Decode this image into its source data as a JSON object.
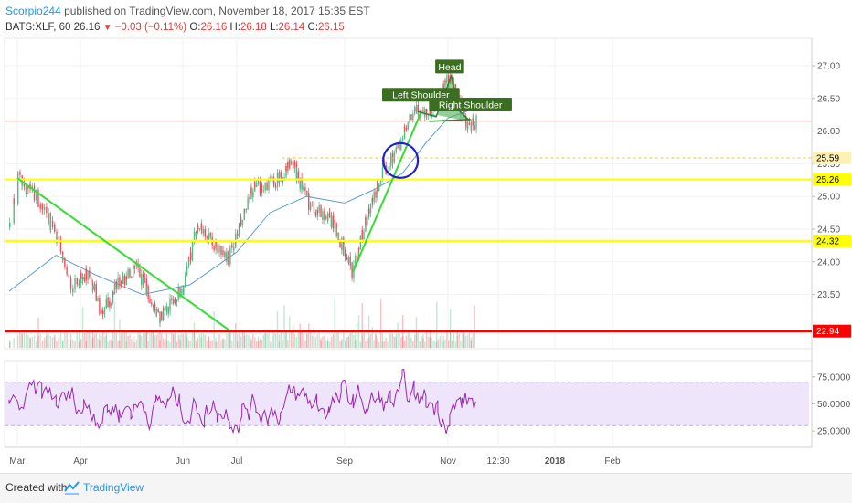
{
  "header": {
    "author": "Scorpio244",
    "published_text": "published on TradingView.com, November 18, 2017 15:35 EST",
    "symbol": "BATS:XLF, 60",
    "last": "26.16",
    "change": "−0.03 (−0.11%)",
    "o_label": "O:",
    "o_value": "26.16",
    "h_label": "H:",
    "h_value": "26.18",
    "l_label": "L:",
    "l_value": "26.14",
    "c_label": "C:",
    "c_value": "26.15"
  },
  "footer": {
    "created_with": "Created with",
    "brand": "TradingView"
  },
  "colors": {
    "up": "#53b987",
    "down": "#eb4d5c",
    "support": "#ffff00",
    "floor": "#ff0000",
    "trend": "#33dd33",
    "ma": "#5b9bd5",
    "rsi": "#9c27b0",
    "rsi_band": "#eee5fb",
    "annotation_bg": "#3b6e22",
    "circle": "#1e1ed2"
  },
  "chart_data": {
    "type": "candlestick",
    "x_ticks": [
      "Mar",
      "Apr",
      "Jun",
      "Jul",
      "Sep",
      "Nov",
      "12:30",
      "2018",
      "Feb"
    ],
    "y_ticks": [
      "27.00",
      "26.50",
      "26.00",
      "25.50",
      "25.00",
      "24.50",
      "24.00",
      "23.50"
    ],
    "ylim": [
      22.85,
      27.2
    ],
    "price_path": [
      [
        "2017-02-27",
        24.6
      ],
      [
        "2017-03-01",
        25.28
      ],
      [
        "2017-03-10",
        25.0
      ],
      [
        "2017-03-20",
        24.4
      ],
      [
        "2017-03-27",
        23.6
      ],
      [
        "2017-04-06",
        23.85
      ],
      [
        "2017-04-13",
        23.2
      ],
      [
        "2017-04-24",
        23.7
      ],
      [
        "2017-05-04",
        23.9
      ],
      [
        "2017-05-18",
        23.15
      ],
      [
        "2017-06-01",
        23.6
      ],
      [
        "2017-06-09",
        24.6
      ],
      [
        "2017-06-16",
        24.3
      ],
      [
        "2017-06-26",
        24.05
      ],
      [
        "2017-07-10",
        25.1
      ],
      [
        "2017-07-27",
        25.3
      ],
      [
        "2017-08-01",
        25.55
      ],
      [
        "2017-08-11",
        24.9
      ],
      [
        "2017-08-25",
        24.6
      ],
      [
        "2017-09-05",
        23.85
      ],
      [
        "2017-09-12",
        24.5
      ],
      [
        "2017-09-22",
        25.3
      ],
      [
        "2017-10-01",
        25.7
      ],
      [
        "2017-10-12",
        26.3
      ],
      [
        "2017-10-22",
        26.3
      ],
      [
        "2017-11-01",
        26.8
      ],
      [
        "2017-11-07",
        26.45
      ],
      [
        "2017-11-12",
        26.05
      ],
      [
        "2017-11-17",
        26.16
      ]
    ],
    "moving_average": [
      [
        "2017-02-27",
        23.55
      ],
      [
        "2017-03-20",
        24.1
      ],
      [
        "2017-04-10",
        23.8
      ],
      [
        "2017-05-08",
        23.5
      ],
      [
        "2017-06-05",
        23.65
      ],
      [
        "2017-07-01",
        24.15
      ],
      [
        "2017-07-20",
        24.75
      ],
      [
        "2017-08-10",
        25.0
      ],
      [
        "2017-09-01",
        24.9
      ],
      [
        "2017-09-18",
        25.1
      ],
      [
        "2017-10-05",
        25.35
      ],
      [
        "2017-10-20",
        25.85
      ],
      [
        "2017-11-01",
        26.2
      ],
      [
        "2017-11-17",
        26.35
      ]
    ],
    "horizontal_lines": [
      {
        "price": 25.26,
        "label": "25.26",
        "color": "#ffff00",
        "label_bg": "#ffff00",
        "label_color": "#000000"
      },
      {
        "price": 24.32,
        "label": "24.32",
        "color": "#ffff00",
        "label_bg": "#ffff00",
        "label_color": "#000000"
      },
      {
        "price": 22.94,
        "label": "22.94",
        "color": "#ff0000",
        "label_bg": "#ff0000",
        "label_color": "#ffffff"
      },
      {
        "price": 25.59,
        "label": "25.59",
        "color": "#f0c040",
        "label_bg": "#fff1b3",
        "label_color": "#000000",
        "dashed": true
      }
    ],
    "last_price_line": 26.15,
    "trend_lines": [
      [
        [
          "2017-03-01",
          25.28
        ],
        [
          "2017-06-27",
          22.95
        ]
      ],
      [
        [
          "2017-09-06",
          23.85
        ],
        [
          "2017-10-16",
          26.28
        ]
      ]
    ],
    "pattern": {
      "points": [
        [
          "2017-10-14",
          26.3
        ],
        [
          "2017-10-25",
          26.22
        ],
        [
          "2017-11-03",
          26.85
        ],
        [
          "2017-11-07",
          26.32
        ],
        [
          "2017-11-14",
          26.15
        ]
      ],
      "neckline": [
        [
          "2017-10-21",
          26.15
        ],
        [
          "2017-11-14",
          26.18
        ]
      ],
      "labels": [
        {
          "text": "Head",
          "at": [
            "2017-11-02",
            26.98
          ]
        },
        {
          "text": "Left Shoulder",
          "at": [
            "2017-10-16",
            26.55
          ]
        },
        {
          "text": "Right Shoulder",
          "at": [
            "2017-11-14",
            26.4
          ]
        }
      ]
    },
    "circle_marker": {
      "at": [
        "2017-10-04",
        25.55
      ]
    },
    "rsi": {
      "y_ticks": [
        "75.0000",
        "50.0000",
        "25.0000"
      ],
      "ylim": [
        10,
        90
      ],
      "band": [
        30,
        70
      ]
    }
  }
}
